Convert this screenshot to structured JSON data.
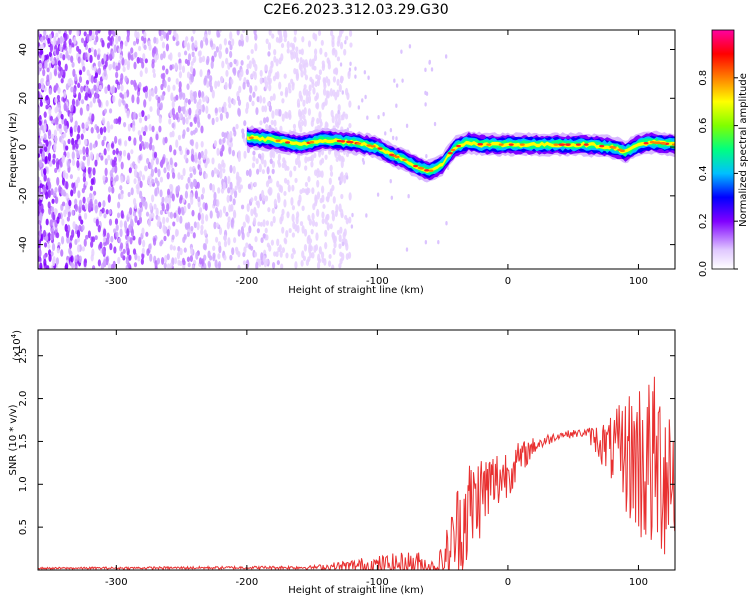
{
  "figure_title": "C2E6.2023.312.03.29.G30",
  "chart_data": [
    {
      "type": "heatmap",
      "xlabel": "Height of straight line (km)",
      "ylabel": "Frequency (Hz)",
      "xlim": [
        -360,
        128
      ],
      "ylim": [
        -50,
        48
      ],
      "xticks": [
        -300,
        -200,
        -100,
        0,
        100
      ],
      "yticks": [
        -40,
        -20,
        0,
        20,
        40
      ],
      "xtick_labels": [
        "-300",
        "-200",
        "-100",
        "0",
        "100"
      ],
      "ytick_labels": [
        "-40",
        "-20",
        "0",
        "20",
        "40"
      ],
      "colorbar": {
        "label": "Normalized spectral amplitude",
        "range": [
          0,
          1
        ],
        "ticks": [
          0.0,
          0.2,
          0.4,
          0.6,
          0.8
        ],
        "tick_labels": [
          "0.0",
          "0.2",
          "0.4",
          "0.6",
          "0.8"
        ],
        "colormap": [
          "#ffffff",
          "#e0c8ff",
          "#8000ff",
          "#0000ff",
          "#00c0ff",
          "#00ff80",
          "#80ff00",
          "#ffff00",
          "#ff8000",
          "#ff0000",
          "#ff00a0"
        ]
      },
      "signal_track": [
        {
          "x": -200,
          "y": 4
        },
        {
          "x": -180,
          "y": 3
        },
        {
          "x": -160,
          "y": 1
        },
        {
          "x": -140,
          "y": 3
        },
        {
          "x": -120,
          "y": 2
        },
        {
          "x": -100,
          "y": 0
        },
        {
          "x": -90,
          "y": -3
        },
        {
          "x": -80,
          "y": -5
        },
        {
          "x": -70,
          "y": -8
        },
        {
          "x": -60,
          "y": -10
        },
        {
          "x": -50,
          "y": -7
        },
        {
          "x": -45,
          "y": -3
        },
        {
          "x": -40,
          "y": 0
        },
        {
          "x": -30,
          "y": 2
        },
        {
          "x": -20,
          "y": 1
        },
        {
          "x": 0,
          "y": 1
        },
        {
          "x": 20,
          "y": 1
        },
        {
          "x": 40,
          "y": 1
        },
        {
          "x": 60,
          "y": 1
        },
        {
          "x": 80,
          "y": 0
        },
        {
          "x": 90,
          "y": -2
        },
        {
          "x": 100,
          "y": 1
        },
        {
          "x": 110,
          "y": 2
        },
        {
          "x": 128,
          "y": 1
        }
      ],
      "noise_region": {
        "x_start": -360,
        "x_end": -130,
        "amplitude_range": [
          0.0,
          0.1
        ]
      }
    },
    {
      "type": "line",
      "xlabel": "Height of straight line (km)",
      "ylabel": "SNR (10 * v/v)",
      "y_multiplier_label": "(x10",
      "y_multiplier_exponent": "4",
      "xlim": [
        -360,
        128
      ],
      "ylim": [
        0,
        2.8
      ],
      "xticks": [
        -300,
        -200,
        -100,
        0,
        100
      ],
      "yticks": [
        0.5,
        1.0,
        1.5,
        2.0,
        2.5
      ],
      "xtick_labels": [
        "-300",
        "-200",
        "-100",
        "0",
        "100"
      ],
      "ytick_labels": [
        "0.5",
        "1.0",
        "1.5",
        "2.0",
        "2.5"
      ],
      "series": [
        {
          "color": "#e83030",
          "envelope": [
            {
              "x": -360,
              "base": 0.02,
              "spread": 0.01
            },
            {
              "x": -150,
              "base": 0.03,
              "spread": 0.02
            },
            {
              "x": -110,
              "base": 0.05,
              "spread": 0.1
            },
            {
              "x": -70,
              "base": 0.08,
              "spread": 0.15
            },
            {
              "x": -55,
              "base": 0.03,
              "spread": 0.06
            },
            {
              "x": -45,
              "base": 0.2,
              "spread": 0.4
            },
            {
              "x": -35,
              "base": 0.6,
              "spread": 0.7
            },
            {
              "x": -20,
              "base": 0.9,
              "spread": 0.5
            },
            {
              "x": 0,
              "base": 1.15,
              "spread": 0.3
            },
            {
              "x": 20,
              "base": 1.45,
              "spread": 0.1
            },
            {
              "x": 40,
              "base": 1.58,
              "spread": 0.04
            },
            {
              "x": 60,
              "base": 1.6,
              "spread": 0.05
            },
            {
              "x": 80,
              "base": 1.4,
              "spread": 0.4
            },
            {
              "x": 100,
              "base": 1.3,
              "spread": 1.0
            },
            {
              "x": 110,
              "base": 1.2,
              "spread": 1.1
            },
            {
              "x": 128,
              "base": 1.2,
              "spread": 1.1
            }
          ]
        }
      ]
    }
  ]
}
